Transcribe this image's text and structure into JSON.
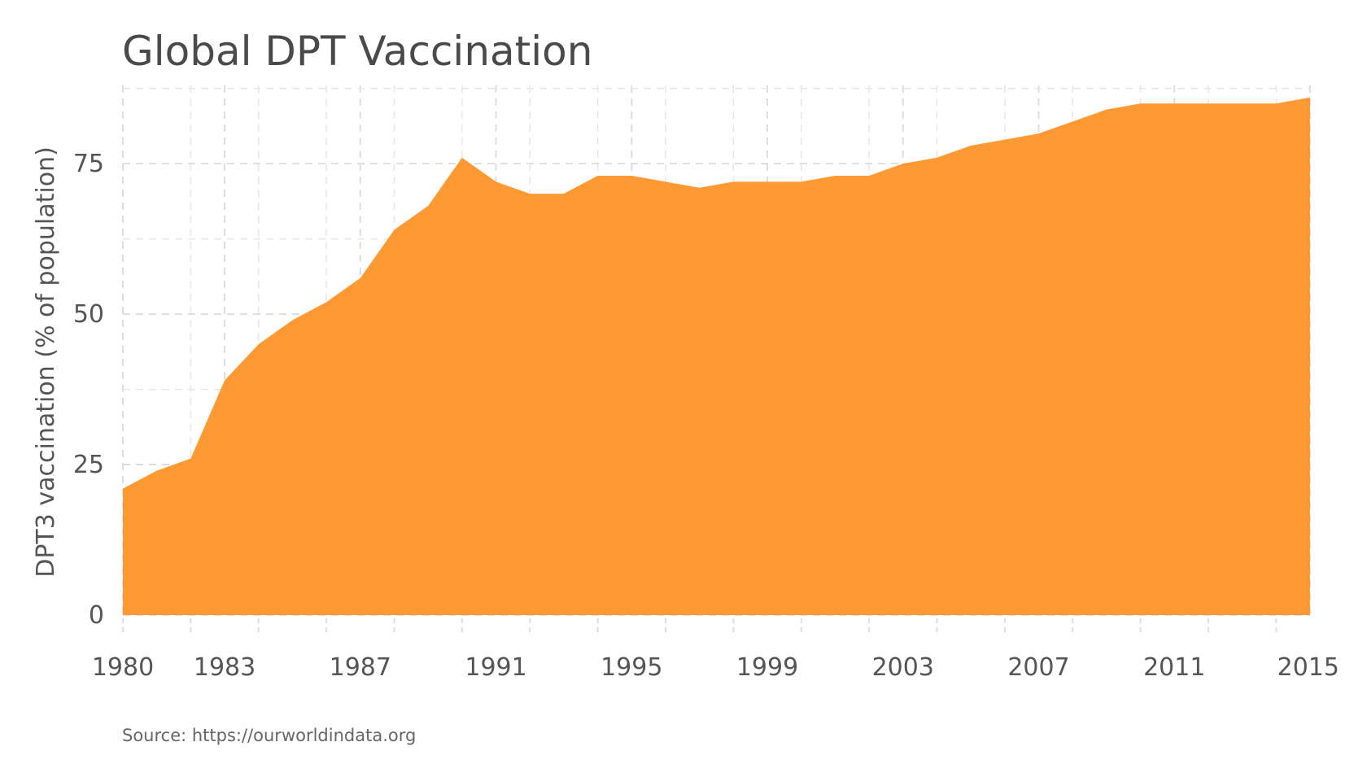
{
  "chart_data": {
    "type": "area",
    "title": "Global DPT Vaccination",
    "xlabel": "",
    "ylabel": "DPT3 vaccination (% of population)",
    "source": "Source: https://ourworldindata.org",
    "xlim": [
      1980,
      2015
    ],
    "ylim": [
      0,
      88
    ],
    "x_ticks": [
      "1980",
      "1983",
      "1987",
      "1991",
      "1995",
      "1999",
      "2003",
      "2007",
      "2011",
      "2015"
    ],
    "y_ticks": [
      "0",
      "25",
      "50",
      "75"
    ],
    "grid": true,
    "color": "#ff9933",
    "series": [
      {
        "x": [
          1980,
          1981,
          1982,
          1983,
          1984,
          1985,
          1986,
          1987,
          1988,
          1989,
          1990,
          1991,
          1992,
          1993,
          1994,
          1995,
          1996,
          1997,
          1998,
          1999,
          2000,
          2001,
          2002,
          2003,
          2004,
          2005,
          2006,
          2007,
          2008,
          2009,
          2010,
          2011,
          2012,
          2013,
          2014,
          2015
        ],
        "values": [
          21,
          24,
          26,
          39,
          45,
          49,
          52,
          56,
          64,
          68,
          76,
          72,
          70,
          70,
          73,
          73,
          72,
          71,
          72,
          72,
          72,
          73,
          73,
          75,
          76,
          78,
          79,
          80,
          82,
          84,
          85,
          85,
          85,
          85,
          85,
          86
        ]
      }
    ]
  }
}
